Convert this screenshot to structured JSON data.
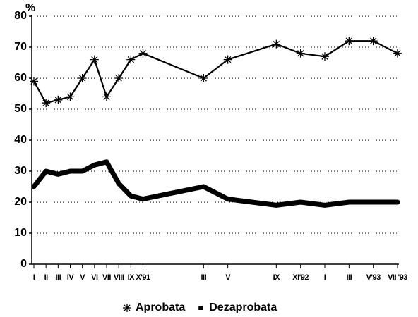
{
  "chart_data": {
    "type": "line",
    "ylabel": "%",
    "x": [
      0,
      1,
      2,
      3,
      4,
      5,
      6,
      7,
      8,
      9,
      14,
      16,
      20,
      22,
      24,
      26,
      28,
      30
    ],
    "xlim": [
      0,
      30
    ],
    "xticks": [
      {
        "value": 0,
        "label": "I"
      },
      {
        "value": 1,
        "label": "II"
      },
      {
        "value": 2,
        "label": "III"
      },
      {
        "value": 3,
        "label": "IV"
      },
      {
        "value": 4,
        "label": "V"
      },
      {
        "value": 5,
        "label": "VI"
      },
      {
        "value": 6,
        "label": "VII"
      },
      {
        "value": 7,
        "label": "VIII"
      },
      {
        "value": 8,
        "label": "IX"
      },
      {
        "value": 9,
        "label": "X'91"
      },
      {
        "value": 14,
        "label": "III"
      },
      {
        "value": 16,
        "label": "V"
      },
      {
        "value": 20,
        "label": "IX"
      },
      {
        "value": 22,
        "label": "XI'92"
      },
      {
        "value": 24,
        "label": "I"
      },
      {
        "value": 26,
        "label": "III"
      },
      {
        "value": 28,
        "label": "V'93"
      },
      {
        "value": 30,
        "label": "VII '93"
      }
    ],
    "ylim": [
      0,
      80
    ],
    "yticks": [
      0,
      10,
      20,
      30,
      40,
      50,
      60,
      70,
      80
    ],
    "grid": true,
    "legend": "bottom",
    "series": [
      {
        "name": "Aprobata",
        "color": "#000000",
        "marker": "asterisk",
        "values": [
          59,
          52,
          53,
          54,
          60,
          66,
          54,
          60,
          66,
          68,
          60,
          66,
          71,
          68,
          67,
          72,
          72,
          68
        ]
      },
      {
        "name": "Dezaprobata",
        "color": "#000000",
        "marker": "square",
        "values": [
          25,
          30,
          29,
          30,
          30,
          32,
          33,
          26,
          22,
          21,
          25,
          21,
          19,
          20,
          19,
          20,
          20,
          20
        ]
      }
    ]
  }
}
